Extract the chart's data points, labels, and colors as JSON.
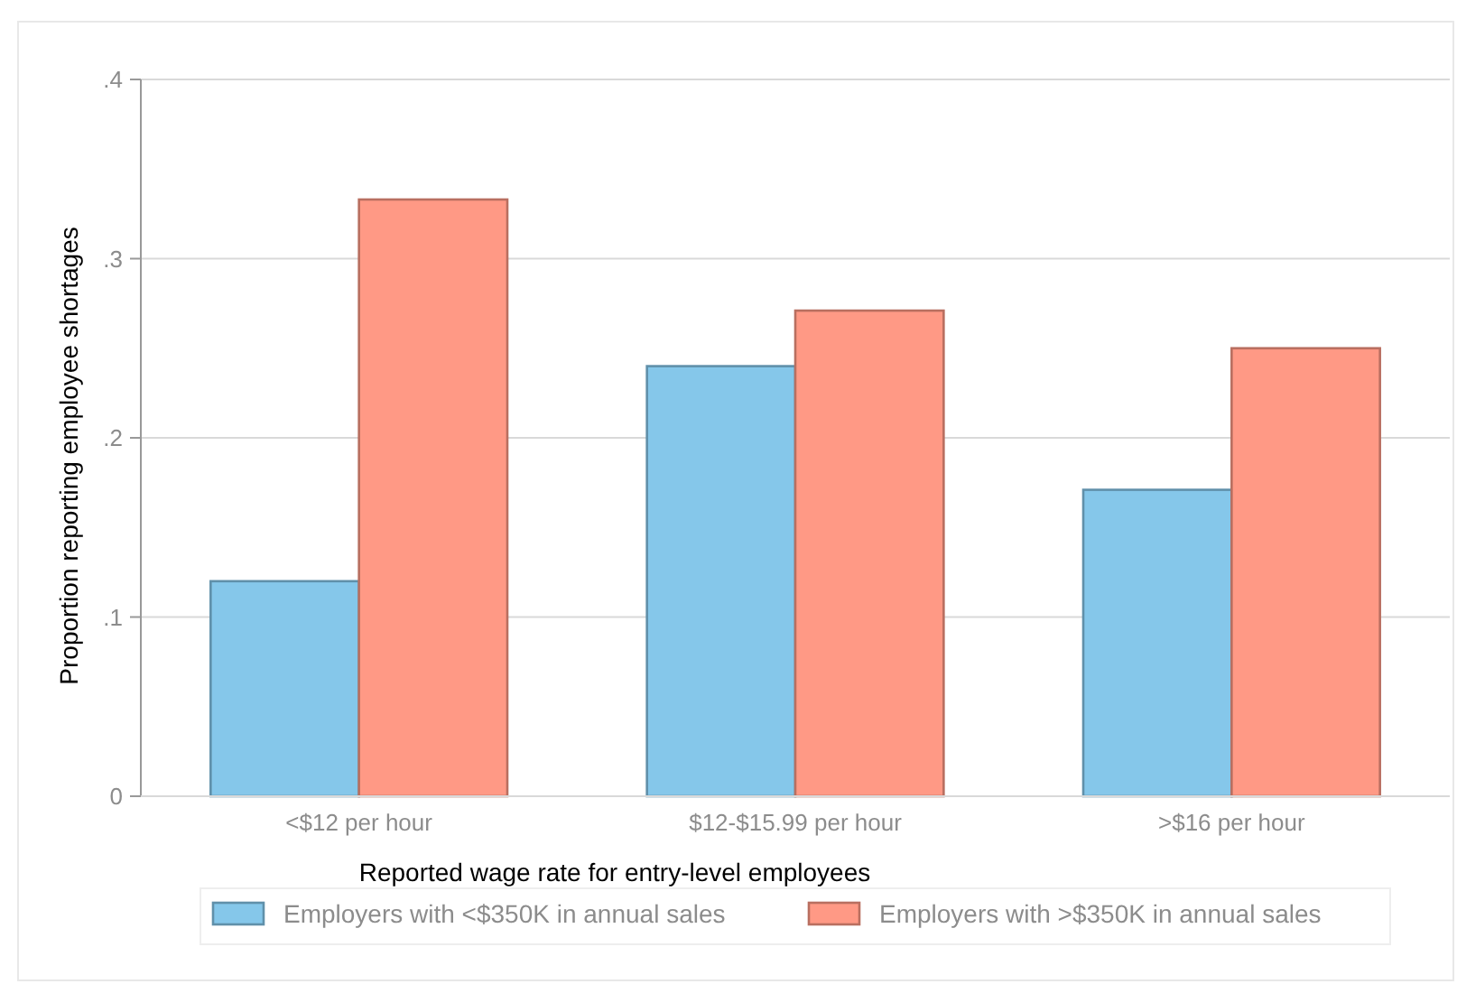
{
  "chart_data": {
    "type": "bar",
    "categories": [
      "<$12 per hour",
      "$12-$15.99 per hour",
      ">$16 per hour"
    ],
    "series": [
      {
        "name": "Employers with <$350K in annual sales",
        "color": "#85c7ea",
        "values": [
          0.12,
          0.24,
          0.171
        ]
      },
      {
        "name": "Employers with >$350K in annual sales",
        "color": "#ff9985",
        "values": [
          0.333,
          0.271,
          0.25
        ]
      }
    ],
    "xlabel": "Reported wage rate for entry-level employees",
    "ylabel": "Proportion reporting employee shortages",
    "ylim": [
      0,
      0.4
    ],
    "yticks": [
      0,
      {
        "value": 0.1,
        "label": ".1"
      },
      {
        "value": 0.2,
        "label": ".2"
      },
      {
        "value": 0.3,
        "label": ".3"
      },
      {
        "value": 0.4,
        "label": ".4"
      }
    ],
    "grid": "y",
    "legend": "bottom"
  }
}
